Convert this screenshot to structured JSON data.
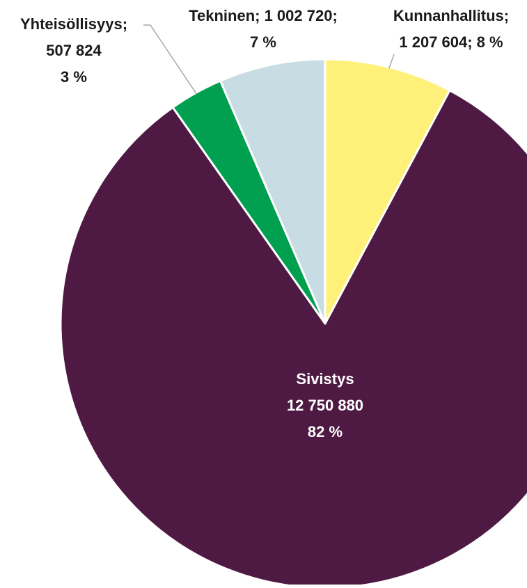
{
  "chart_data": {
    "type": "pie",
    "title": "",
    "slices": [
      {
        "name": "Kunnanhallitus",
        "value": 1207604,
        "value_label": "1 207 604",
        "percent_label": "8 %",
        "color": "#FFF07A"
      },
      {
        "name": "Sivistys",
        "value": 12750880,
        "value_label": "12 750 880",
        "percent_label": "82 %",
        "color": "#4E1A44"
      },
      {
        "name": "Yhteisöllisyys",
        "value": 507824,
        "value_label": "507 824",
        "percent_label": "3 %",
        "color": "#00A050"
      },
      {
        "name": "Tekninen",
        "value": 1002720,
        "value_label": "1 002 720",
        "percent_label": "7 %",
        "color": "#C7DDE3"
      }
    ],
    "start": "12 o'clock",
    "direction": "clockwise",
    "legend": "none",
    "label_text_color_dark": "#1a1a1a",
    "label_text_color_light": "#ffffff",
    "leader_line_color": "#a6a6a6"
  }
}
